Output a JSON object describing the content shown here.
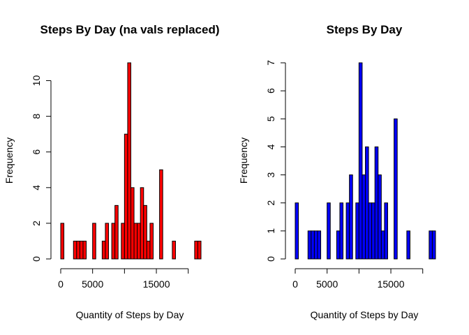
{
  "chart_data": [
    {
      "type": "bar",
      "title": "Steps By Day (na vals replaced)",
      "xlabel": "Quantity of Steps by Day",
      "ylabel": "Frequency",
      "bar_color": "#FF0000",
      "bin_width": 500,
      "bin_start": 0,
      "xlim": [
        0,
        22000
      ],
      "ylim": [
        0,
        11
      ],
      "x_ticks": [
        0,
        5000,
        15000
      ],
      "x_tick_labels": [
        "0",
        "5000",
        "15000"
      ],
      "x_axis_end": 20000,
      "y_ticks": [
        0,
        2,
        4,
        6,
        8,
        10
      ],
      "y_tick_labels": [
        "0",
        "2",
        "4",
        "6",
        "8",
        "10"
      ],
      "values": [
        2,
        0,
        0,
        0,
        1,
        1,
        1,
        1,
        0,
        0,
        2,
        0,
        0,
        1,
        2,
        0,
        2,
        3,
        0,
        2,
        7,
        11,
        4,
        2,
        2,
        4,
        3,
        1,
        2,
        0,
        0,
        5,
        0,
        0,
        0,
        1,
        0,
        0,
        0,
        0,
        0,
        0,
        1,
        1
      ]
    },
    {
      "type": "bar",
      "title": "Steps By Day",
      "xlabel": "Quantity of Steps by Day",
      "ylabel": "Frequency",
      "bar_color": "#0000FF",
      "bin_width": 500,
      "bin_start": 0,
      "xlim": [
        0,
        22000
      ],
      "ylim": [
        0,
        7
      ],
      "x_ticks": [
        0,
        5000,
        15000
      ],
      "x_tick_labels": [
        "0",
        "5000",
        "15000"
      ],
      "x_axis_end": 20000,
      "y_ticks": [
        0,
        1,
        2,
        3,
        4,
        5,
        6,
        7
      ],
      "y_tick_labels": [
        "0",
        "1",
        "2",
        "3",
        "4",
        "5",
        "6",
        "7"
      ],
      "values": [
        2,
        0,
        0,
        0,
        1,
        1,
        1,
        1,
        0,
        0,
        2,
        0,
        0,
        1,
        2,
        0,
        2,
        3,
        0,
        2,
        7,
        3,
        4,
        2,
        2,
        4,
        3,
        1,
        2,
        0,
        0,
        5,
        0,
        0,
        0,
        1,
        0,
        0,
        0,
        0,
        0,
        0,
        1,
        1
      ]
    }
  ]
}
